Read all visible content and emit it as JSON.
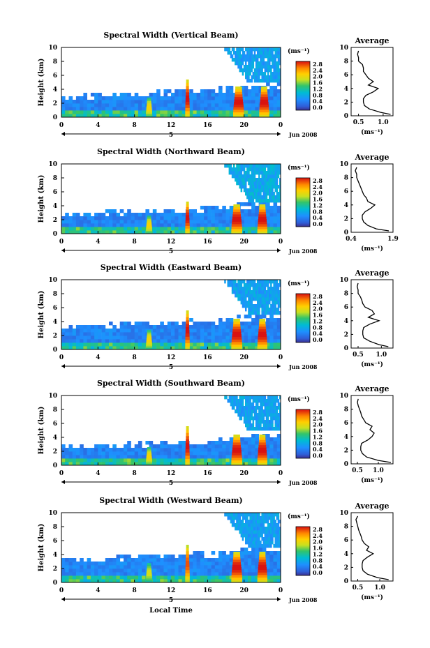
{
  "figure": {
    "xlabel": "Local Time",
    "date_label": "Jun 2008",
    "day_label": "5",
    "colorbar_unit": "(ms⁻¹)",
    "colorbar_ticks": [
      "2.8",
      "2.4",
      "2.0",
      "1.6",
      "1.2",
      "0.8",
      "0.4",
      "0.0"
    ],
    "avg_title": "Average",
    "avg_unit": "(ms⁻¹)"
  },
  "chart_data": [
    {
      "type": "heatmap",
      "title": "Spectral Width (Vertical Beam)",
      "ylabel": "Height (km)",
      "xticks": [
        "0",
        "4",
        "8",
        "12",
        "16",
        "20",
        "0"
      ],
      "yticks": [
        "0",
        "2",
        "4",
        "6",
        "8",
        "10"
      ],
      "xlim": [
        0,
        24
      ],
      "ylim": [
        0,
        10
      ],
      "zlim": [
        0.0,
        2.8
      ],
      "unit": "ms-1",
      "background_top_km": [
        2.9,
        3.0,
        3.1,
        3.2,
        3.3,
        3.4,
        3.5,
        3.6,
        3.7,
        3.8,
        4.0,
        4.2,
        4.4,
        4.6
      ],
      "convective_cells": [
        {
          "time_h": 9.6,
          "top_km": 2.8,
          "width_h": 0.7,
          "max_width_ms": 2.0
        },
        {
          "time_h": 13.8,
          "top_km": 5.4,
          "width_h": 0.5,
          "max_width_ms": 2.8
        },
        {
          "time_h": 19.4,
          "top_km": 4.4,
          "width_h": 1.2,
          "max_width_ms": 2.8
        },
        {
          "time_h": 22.2,
          "top_km": 4.4,
          "width_h": 1.1,
          "max_width_ms": 2.8
        }
      ],
      "upper_region": {
        "start_h": 17.5,
        "end_h": 24,
        "bottom_km": 4.6,
        "top_km": 10,
        "typical_width_ms": 0.8
      },
      "average_profile": {
        "xticks": [
          "0.5",
          "1.0"
        ],
        "xlim": [
          0.35,
          1.2
        ],
        "yticks": [
          "0",
          "2",
          "4",
          "6",
          "8",
          "10"
        ],
        "height_km": [
          0.2,
          0.5,
          1.0,
          1.5,
          2.0,
          2.5,
          3.0,
          3.5,
          4.0,
          4.5,
          5.0,
          5.5,
          6.0,
          6.5,
          7.0,
          7.5,
          8.0,
          8.5,
          9.0,
          9.5
        ],
        "width_ms": [
          1.15,
          0.95,
          0.72,
          0.62,
          0.6,
          0.6,
          0.65,
          0.8,
          0.9,
          0.7,
          0.8,
          0.7,
          0.65,
          0.6,
          0.6,
          0.58,
          0.5,
          0.5,
          0.48,
          0.5
        ]
      }
    },
    {
      "type": "heatmap",
      "title": "Spectral Width (Northward Beam)",
      "ylabel": "Height (km)",
      "xticks": [
        "0",
        "4",
        "8",
        "12",
        "16",
        "20",
        "0"
      ],
      "yticks": [
        "0",
        "2",
        "4",
        "6",
        "8",
        "10"
      ],
      "xlim": [
        0,
        24
      ],
      "ylim": [
        0,
        10
      ],
      "zlim": [
        0.0,
        2.8
      ],
      "unit": "ms-1",
      "background_top_km": [
        2.8,
        2.9,
        3.0,
        3.0,
        3.1,
        3.2,
        3.3,
        3.4,
        3.5,
        3.6,
        3.8,
        4.0,
        4.2,
        4.4
      ],
      "convective_cells": [
        {
          "time_h": 9.6,
          "top_km": 2.6,
          "width_h": 0.7,
          "max_width_ms": 2.0
        },
        {
          "time_h": 13.8,
          "top_km": 4.6,
          "width_h": 0.5,
          "max_width_ms": 2.8
        },
        {
          "time_h": 19.2,
          "top_km": 4.2,
          "width_h": 1.2,
          "max_width_ms": 2.8
        },
        {
          "time_h": 22.0,
          "top_km": 4.2,
          "width_h": 1.1,
          "max_width_ms": 2.8
        }
      ],
      "upper_region": {
        "start_h": 17.5,
        "end_h": 24,
        "bottom_km": 4.4,
        "top_km": 10,
        "typical_width_ms": 0.9
      },
      "average_profile": {
        "xticks": [
          "0.4",
          "1.9"
        ],
        "xlim": [
          0.4,
          1.9
        ],
        "yticks": [
          "0",
          "2",
          "4",
          "6",
          "8",
          "10"
        ],
        "height_km": [
          0.2,
          0.5,
          1.0,
          1.5,
          2.0,
          2.5,
          3.0,
          3.5,
          4.0,
          4.5,
          5.0,
          5.5,
          6.0,
          6.5,
          7.0,
          7.5,
          8.0,
          8.5,
          9.0,
          9.5
        ],
        "width_ms": [
          1.75,
          1.3,
          1.0,
          0.85,
          0.8,
          0.8,
          0.9,
          1.1,
          1.25,
          1.0,
          0.95,
          0.85,
          0.8,
          0.75,
          0.7,
          0.65,
          0.6,
          0.6,
          0.55,
          0.6
        ]
      }
    },
    {
      "type": "heatmap",
      "title": "Spectral Width (Eastward Beam)",
      "ylabel": "Height (km)",
      "xticks": [
        "0",
        "4",
        "8",
        "12",
        "16",
        "20",
        "0"
      ],
      "yticks": [
        "0",
        "2",
        "4",
        "6",
        "8",
        "10"
      ],
      "xlim": [
        0,
        24
      ],
      "ylim": [
        0,
        10
      ],
      "zlim": [
        0.0,
        2.8
      ],
      "unit": "ms-1",
      "background_top_km": [
        3.2,
        3.3,
        3.4,
        3.5,
        3.6,
        3.7,
        3.8,
        3.9,
        4.0,
        4.1,
        4.3,
        4.5,
        4.6,
        4.8
      ],
      "convective_cells": [
        {
          "time_h": 9.6,
          "top_km": 2.8,
          "width_h": 0.7,
          "max_width_ms": 2.0
        },
        {
          "time_h": 13.8,
          "top_km": 5.6,
          "width_h": 0.5,
          "max_width_ms": 2.8
        },
        {
          "time_h": 19.2,
          "top_km": 4.4,
          "width_h": 1.2,
          "max_width_ms": 2.8
        },
        {
          "time_h": 22.0,
          "top_km": 4.4,
          "width_h": 1.1,
          "max_width_ms": 2.8
        }
      ],
      "upper_region": {
        "start_h": 17.5,
        "end_h": 24,
        "bottom_km": 4.8,
        "top_km": 10,
        "typical_width_ms": 0.8
      },
      "average_profile": {
        "xticks": [
          "0.5",
          "1.0"
        ],
        "xlim": [
          0.35,
          1.25
        ],
        "yticks": [
          "0",
          "2",
          "4",
          "6",
          "8",
          "10"
        ],
        "height_km": [
          0.2,
          0.5,
          1.0,
          1.5,
          2.0,
          2.5,
          3.0,
          3.5,
          4.0,
          4.5,
          5.0,
          5.5,
          6.0,
          6.5,
          7.0,
          7.5,
          8.0,
          8.5,
          9.0,
          9.5
        ],
        "width_ms": [
          1.15,
          0.95,
          0.75,
          0.62,
          0.6,
          0.6,
          0.62,
          0.75,
          0.95,
          0.72,
          0.85,
          0.8,
          0.65,
          0.6,
          0.58,
          0.55,
          0.5,
          0.5,
          0.48,
          0.5
        ]
      }
    },
    {
      "type": "heatmap",
      "title": "Spectral Width (Southward Beam)",
      "ylabel": "Height (km)",
      "xticks": [
        "0",
        "4",
        "8",
        "12",
        "16",
        "20",
        "0"
      ],
      "yticks": [
        "0",
        "2",
        "4",
        "6",
        "8",
        "10"
      ],
      "xlim": [
        0,
        24
      ],
      "ylim": [
        0,
        10
      ],
      "zlim": [
        0.0,
        2.8
      ],
      "unit": "ms-1",
      "background_top_km": [
        2.8,
        2.8,
        2.9,
        2.9,
        3.0,
        3.0,
        3.1,
        3.2,
        3.3,
        3.4,
        3.6,
        3.8,
        4.0,
        4.2
      ],
      "convective_cells": [
        {
          "time_h": 9.6,
          "top_km": 2.6,
          "width_h": 0.7,
          "max_width_ms": 2.0
        },
        {
          "time_h": 13.8,
          "top_km": 5.6,
          "width_h": 0.5,
          "max_width_ms": 2.8
        },
        {
          "time_h": 19.2,
          "top_km": 4.4,
          "width_h": 1.2,
          "max_width_ms": 2.8
        },
        {
          "time_h": 22.0,
          "top_km": 4.4,
          "width_h": 1.1,
          "max_width_ms": 2.8
        }
      ],
      "upper_region": {
        "start_h": 17.5,
        "end_h": 24,
        "bottom_km": 4.6,
        "top_km": 10,
        "typical_width_ms": 0.8
      },
      "average_profile": {
        "xticks": [
          "0.5",
          "1.0"
        ],
        "xlim": [
          0.35,
          1.35
        ],
        "yticks": [
          "0",
          "2",
          "4",
          "6",
          "8",
          "10"
        ],
        "height_km": [
          0.2,
          0.5,
          1.0,
          1.5,
          2.0,
          2.5,
          3.0,
          3.5,
          4.0,
          4.5,
          5.0,
          5.5,
          6.0,
          6.5,
          7.0,
          7.5,
          8.0,
          8.5,
          9.0,
          9.5
        ],
        "width_ms": [
          1.3,
          1.0,
          0.72,
          0.62,
          0.58,
          0.58,
          0.6,
          0.75,
          0.85,
          0.9,
          0.8,
          0.85,
          0.7,
          0.65,
          0.6,
          0.58,
          0.55,
          0.52,
          0.5,
          0.52
        ]
      }
    },
    {
      "type": "heatmap",
      "title": "Spectral Width (Westward Beam)",
      "ylabel": "Height (km)",
      "xticks": [
        "0",
        "4",
        "8",
        "12",
        "16",
        "20",
        "0"
      ],
      "yticks": [
        "0",
        "2",
        "4",
        "6",
        "8",
        "10"
      ],
      "xlim": [
        0,
        24
      ],
      "ylim": [
        0,
        10
      ],
      "zlim": [
        0.0,
        2.8
      ],
      "unit": "ms-1",
      "background_top_km": [
        3.2,
        3.3,
        3.4,
        3.5,
        3.6,
        3.7,
        3.8,
        3.9,
        4.0,
        4.1,
        4.3,
        4.5,
        4.7,
        4.9
      ],
      "convective_cells": [
        {
          "time_h": 9.6,
          "top_km": 2.8,
          "width_h": 0.7,
          "max_width_ms": 1.8
        },
        {
          "time_h": 13.8,
          "top_km": 5.4,
          "width_h": 0.5,
          "max_width_ms": 2.6
        },
        {
          "time_h": 19.2,
          "top_km": 4.4,
          "width_h": 1.2,
          "max_width_ms": 2.8
        },
        {
          "time_h": 22.0,
          "top_km": 4.4,
          "width_h": 1.1,
          "max_width_ms": 2.8
        }
      ],
      "upper_region": {
        "start_h": 17.5,
        "end_h": 24,
        "bottom_km": 4.8,
        "top_km": 10,
        "typical_width_ms": 0.8
      },
      "average_profile": {
        "xticks": [
          "0.5",
          "1.0"
        ],
        "xlim": [
          0.35,
          1.3
        ],
        "yticks": [
          "0",
          "2",
          "4",
          "6",
          "8",
          "10"
        ],
        "height_km": [
          0.2,
          0.5,
          1.0,
          1.5,
          2.0,
          2.5,
          3.0,
          3.5,
          4.0,
          4.5,
          5.0,
          5.5,
          6.0,
          6.5,
          7.0,
          7.5,
          8.0,
          8.5,
          9.0,
          9.5
        ],
        "width_ms": [
          1.2,
          0.95,
          0.72,
          0.62,
          0.6,
          0.6,
          0.62,
          0.72,
          0.85,
          0.7,
          0.75,
          0.65,
          0.6,
          0.58,
          0.55,
          0.52,
          0.5,
          0.48,
          0.46,
          0.5
        ]
      }
    }
  ]
}
